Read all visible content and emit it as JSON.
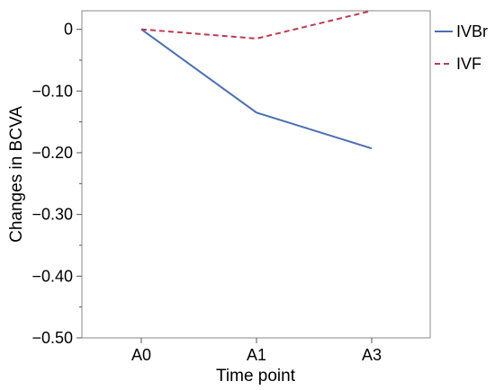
{
  "chart_data": {
    "type": "line",
    "title": "",
    "xlabel": "Time point",
    "ylabel": "Changes in BCVA",
    "categories": [
      "A0",
      "A1",
      "A3"
    ],
    "ylim": [
      -0.5,
      0.03
    ],
    "yticks": [
      0,
      -0.1,
      -0.2,
      -0.3,
      -0.4,
      -0.5
    ],
    "ytick_labels": [
      "0",
      "−0.10",
      "−0.20",
      "−0.30",
      "−0.40",
      "−0.50"
    ],
    "grid": false,
    "legend_position": "right",
    "series": [
      {
        "name": "IVBr",
        "values": [
          0,
          -0.135,
          -0.193
        ],
        "color": "#4a6fb5",
        "style": "solid"
      },
      {
        "name": "IVF",
        "values": [
          0,
          -0.015,
          0.03
        ],
        "color": "#c0394f",
        "style": "dashed"
      }
    ]
  }
}
